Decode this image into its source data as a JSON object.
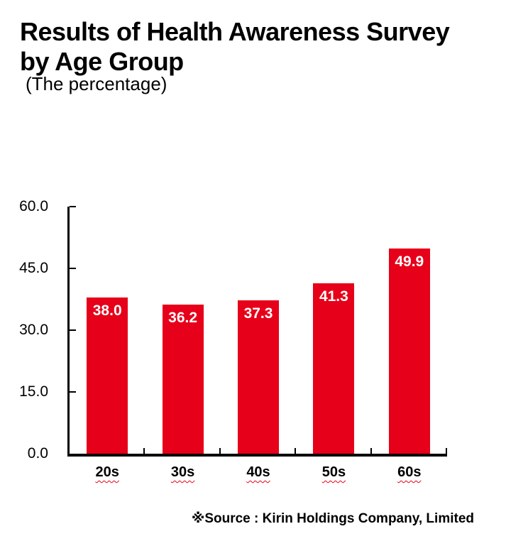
{
  "header": {
    "title_line1": "Results of Health Awareness Survey",
    "title_line2": "by Age Group",
    "subtitle": "(The percentage)"
  },
  "footer": {
    "source": "※Source : Kirin Holdings Company, Limited"
  },
  "chart_data": {
    "type": "bar",
    "title": "Results of Health Awareness Survey by Age Group",
    "subtitle": "(The percentage)",
    "unit": "percent",
    "categories": [
      "20s",
      "30s",
      "40s",
      "50s",
      "60s"
    ],
    "values": [
      38.0,
      36.2,
      37.3,
      41.3,
      49.9
    ],
    "bar_labels": [
      "38.0",
      "36.2",
      "37.3",
      "41.3",
      "49.9"
    ],
    "xlabel": "",
    "ylabel": "",
    "ylim": [
      0,
      60
    ],
    "yticks": [
      0,
      15,
      30,
      45,
      60
    ],
    "ytick_labels": [
      "0.0",
      "15.0",
      "30.0",
      "45.0",
      "60.0"
    ],
    "grid": false,
    "legend": false,
    "colors": {
      "bar": "#e60019",
      "value_label": "#ffffff",
      "axis": "#000000",
      "category_underline": "#e60019"
    }
  }
}
